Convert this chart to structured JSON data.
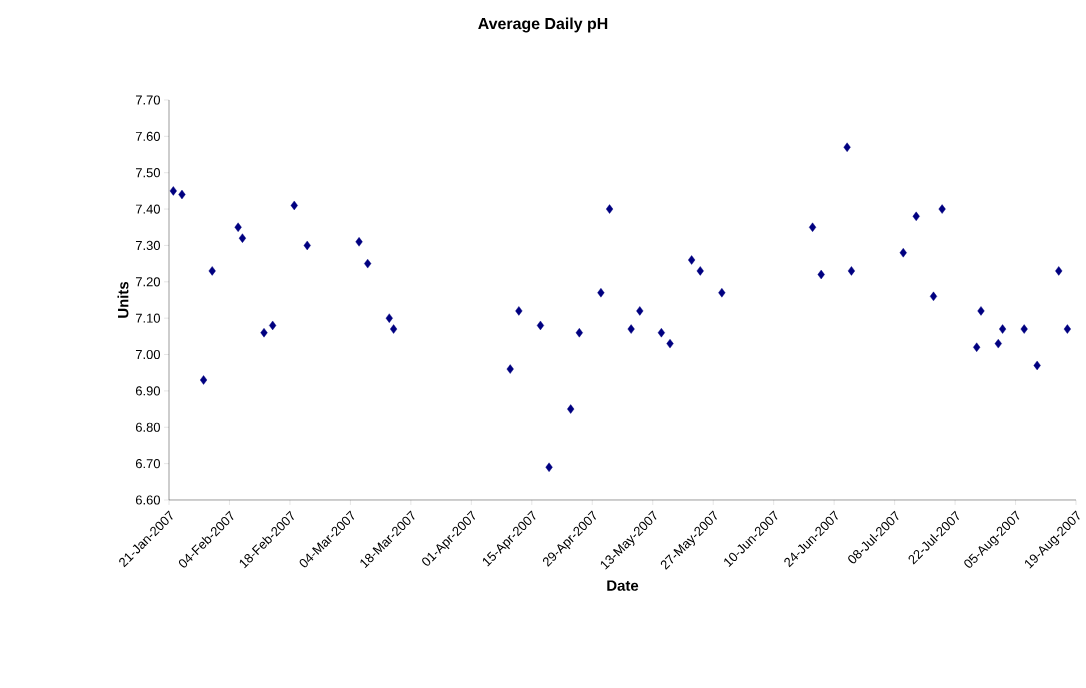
{
  "chart_data": {
    "type": "scatter",
    "title": "Average Daily pH",
    "xlabel": "Date",
    "ylabel": "Units",
    "x": [
      "2007-01-22",
      "2007-01-24",
      "2007-01-29",
      "2007-01-31",
      "2007-02-06",
      "2007-02-07",
      "2007-02-12",
      "2007-02-14",
      "2007-02-19",
      "2007-02-22",
      "2007-03-06",
      "2007-03-08",
      "2007-03-13",
      "2007-03-14",
      "2007-04-10",
      "2007-04-12",
      "2007-04-17",
      "2007-04-19",
      "2007-04-24",
      "2007-04-26",
      "2007-05-01",
      "2007-05-03",
      "2007-05-08",
      "2007-05-10",
      "2007-05-15",
      "2007-05-17",
      "2007-05-22",
      "2007-05-24",
      "2007-05-29",
      "2007-06-19",
      "2007-06-21",
      "2007-06-27",
      "2007-06-28",
      "2007-07-10",
      "2007-07-13",
      "2007-07-17",
      "2007-07-19",
      "2007-07-27",
      "2007-07-28",
      "2007-08-01",
      "2007-08-02",
      "2007-08-07",
      "2007-08-10",
      "2007-08-15",
      "2007-08-17"
    ],
    "values": [
      7.45,
      7.44,
      6.93,
      7.23,
      7.35,
      7.32,
      7.06,
      7.08,
      7.41,
      7.3,
      7.31,
      7.25,
      7.1,
      7.07,
      6.96,
      7.12,
      7.08,
      6.69,
      6.85,
      7.06,
      7.17,
      7.4,
      7.07,
      7.12,
      7.06,
      7.03,
      7.26,
      7.23,
      7.17,
      7.35,
      7.22,
      7.57,
      7.23,
      7.28,
      7.38,
      7.16,
      7.4,
      7.02,
      7.12,
      7.03,
      7.07,
      7.07,
      6.97,
      7.23,
      7.07
    ],
    "color": "#000080",
    "marker": "diamond",
    "xlim": [
      "2007-01-21",
      "2007-08-19"
    ],
    "xticks": [
      {
        "value": "2007-01-21",
        "label": "21-Jan-2007"
      },
      {
        "value": "2007-02-04",
        "label": "04-Feb-2007"
      },
      {
        "value": "2007-02-18",
        "label": "18-Feb-2007"
      },
      {
        "value": "2007-03-04",
        "label": "04-Mar-2007"
      },
      {
        "value": "2007-03-18",
        "label": "18-Mar-2007"
      },
      {
        "value": "2007-04-01",
        "label": "01-Apr-2007"
      },
      {
        "value": "2007-04-15",
        "label": "15-Apr-2007"
      },
      {
        "value": "2007-04-29",
        "label": "29-Apr-2007"
      },
      {
        "value": "2007-05-13",
        "label": "13-May-2007"
      },
      {
        "value": "2007-05-27",
        "label": "27-May-2007"
      },
      {
        "value": "2007-06-10",
        "label": "10-Jun-2007"
      },
      {
        "value": "2007-06-24",
        "label": "24-Jun-2007"
      },
      {
        "value": "2007-07-08",
        "label": "08-Jul-2007"
      },
      {
        "value": "2007-07-22",
        "label": "22-Jul-2007"
      },
      {
        "value": "2007-08-05",
        "label": "05-Aug-2007"
      },
      {
        "value": "2007-08-19",
        "label": "19-Aug-2007"
      }
    ],
    "ylim": [
      6.6,
      7.7
    ],
    "yticks": [
      {
        "value": 6.6,
        "label": "6.60"
      },
      {
        "value": 6.7,
        "label": "6.70"
      },
      {
        "value": 6.8,
        "label": "6.80"
      },
      {
        "value": 6.9,
        "label": "6.90"
      },
      {
        "value": 7.0,
        "label": "7.00"
      },
      {
        "value": 7.1,
        "label": "7.10"
      },
      {
        "value": 7.2,
        "label": "7.20"
      },
      {
        "value": 7.3,
        "label": "7.30"
      },
      {
        "value": 7.4,
        "label": "7.40"
      },
      {
        "value": 7.5,
        "label": "7.50"
      },
      {
        "value": 7.6,
        "label": "7.60"
      },
      {
        "value": 7.7,
        "label": "7.70"
      }
    ],
    "grid": false
  }
}
